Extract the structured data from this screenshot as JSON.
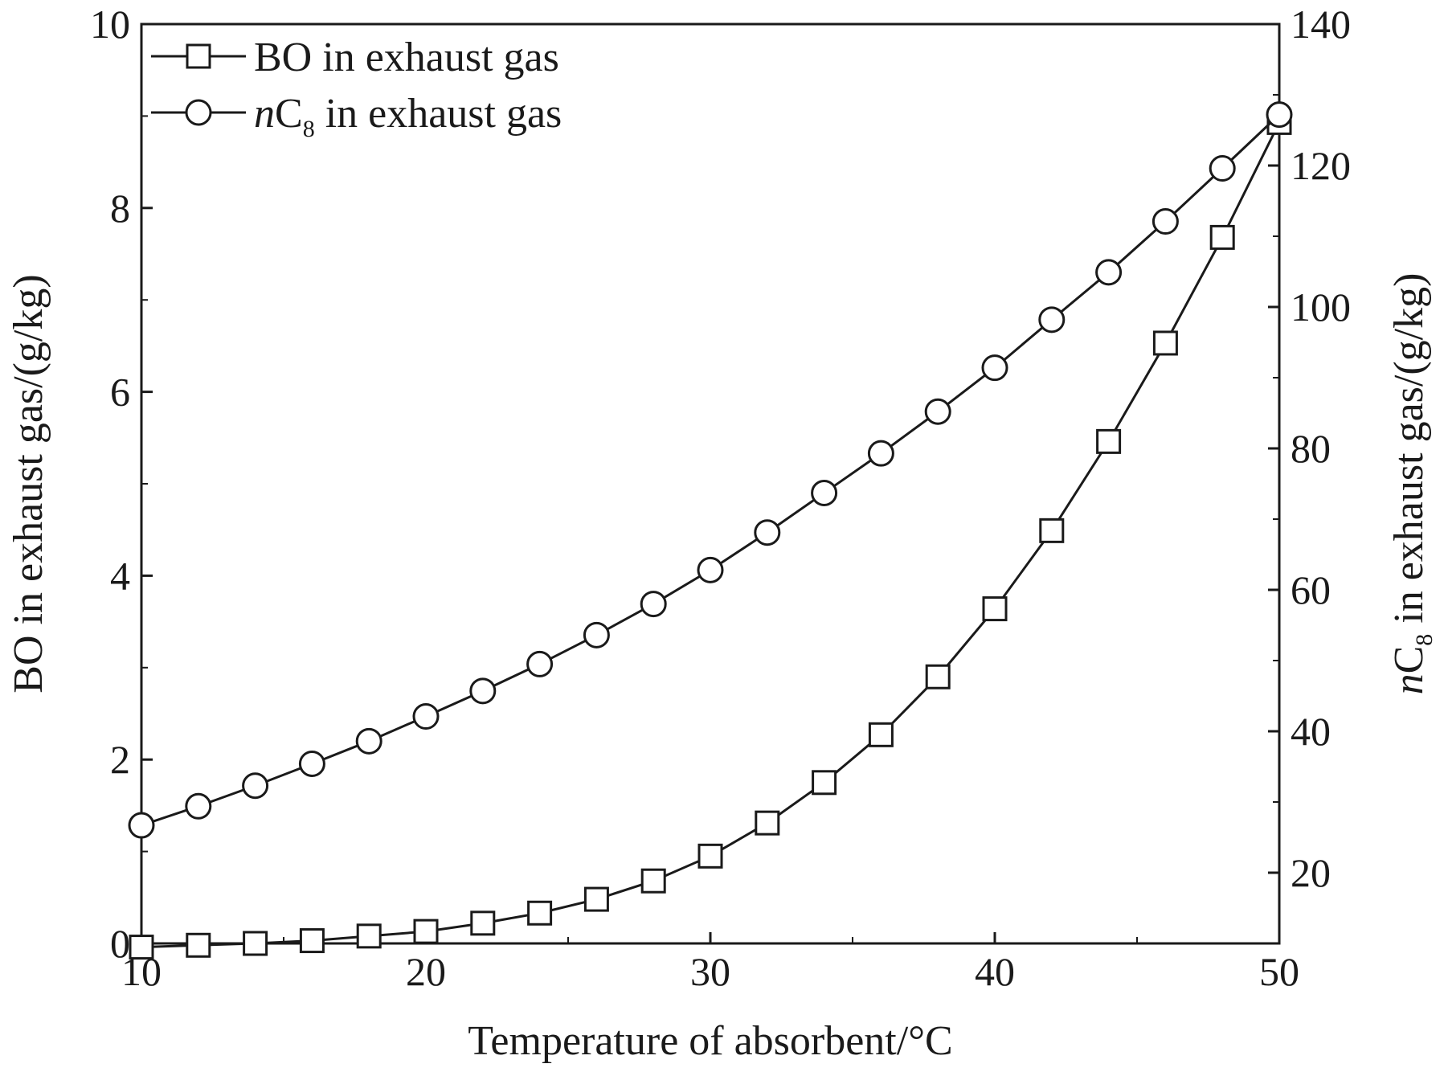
{
  "chart_data": {
    "type": "line",
    "title": "",
    "xlabel": "Temperature of absorbent/°C",
    "ylabel_left": {
      "prefix": "",
      "italic": "",
      "main": "BO",
      "sub": "",
      "rest": " in exhaust gas/(g/kg)"
    },
    "ylabel_right": {
      "prefix": "",
      "italic": "n",
      "main": "C",
      "sub": "8",
      "rest": " in exhaust gas/(g/kg)"
    },
    "xlim": [
      10,
      50
    ],
    "ylim_left": [
      0,
      10
    ],
    "ylim_right": [
      10,
      140
    ],
    "x_ticks": [
      "10",
      "20",
      "30",
      "40",
      "50"
    ],
    "y_left_ticks": [
      "0",
      "2",
      "4",
      "6",
      "8",
      "10"
    ],
    "y_right_ticks": [
      "20",
      "40",
      "60",
      "80",
      "100",
      "120",
      "140"
    ],
    "grid": false,
    "legend_position": "top-left",
    "x": [
      10,
      12,
      14,
      16,
      18,
      20,
      22,
      24,
      26,
      28,
      30,
      32,
      34,
      36,
      38,
      40,
      42,
      44,
      46,
      48,
      50
    ],
    "series": [
      {
        "name": "BO in exhaust gas",
        "legend": {
          "italic": "",
          "main": "BO",
          "sub": "",
          "rest": " in exhaust gas"
        },
        "marker": "square",
        "axis": "left",
        "values": [
          -0.04,
          -0.02,
          0.0,
          0.03,
          0.08,
          0.13,
          0.22,
          0.33,
          0.48,
          0.68,
          0.95,
          1.31,
          1.75,
          2.27,
          2.9,
          3.64,
          4.49,
          5.46,
          6.53,
          7.68,
          8.93
        ]
      },
      {
        "name": "nC8 in exhaust gas",
        "legend": {
          "italic": "n",
          "main": "C",
          "sub": "8",
          "rest": " in exhaust gas"
        },
        "marker": "circle",
        "axis": "right",
        "values": [
          26.7,
          29.4,
          32.3,
          35.4,
          38.6,
          42.1,
          45.7,
          49.5,
          53.6,
          58.0,
          62.8,
          68.1,
          73.7,
          79.3,
          85.2,
          91.4,
          98.2,
          104.9,
          112.1,
          119.6,
          127.2
        ]
      }
    ]
  }
}
